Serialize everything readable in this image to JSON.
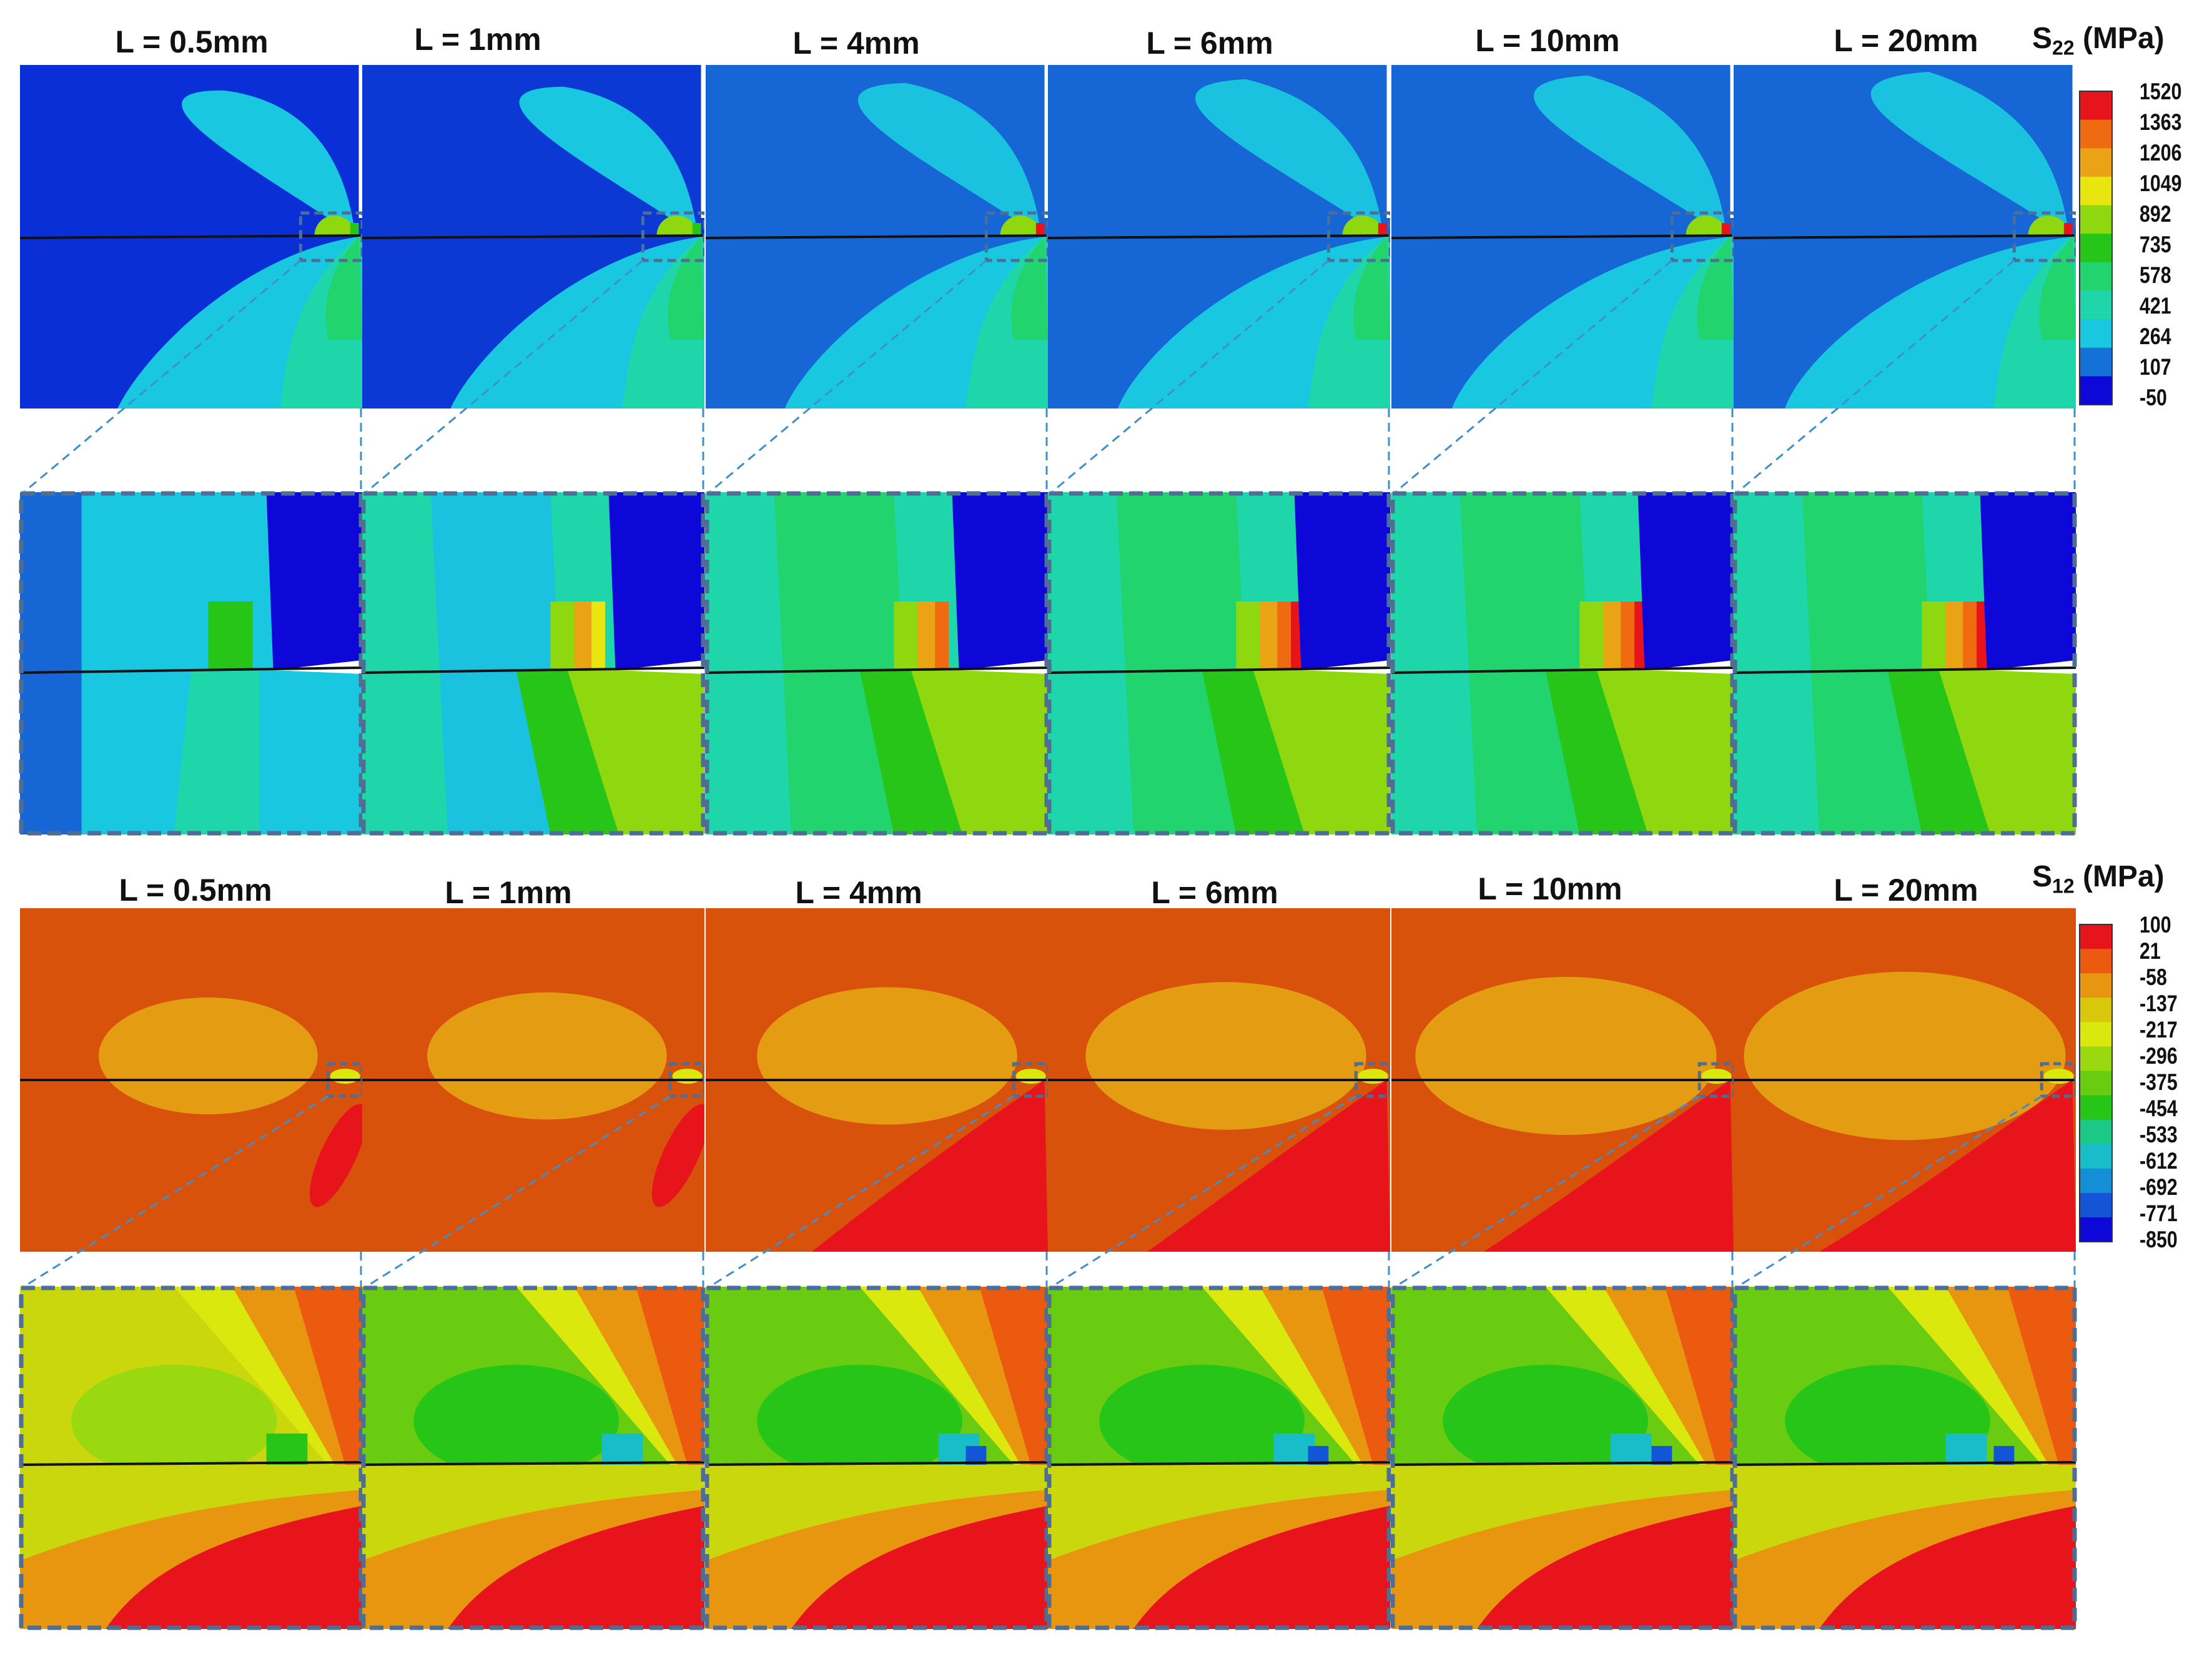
{
  "top_figure": {
    "labels": [
      "L = 0.5mm",
      "L = 1mm",
      "L = 4mm",
      "L = 6mm",
      "L = 10mm",
      "L = 20mm"
    ],
    "colorbar": {
      "symbol": "S",
      "subscript": "22",
      "unit": "(MPa)",
      "ticks": [
        "1520",
        "1363",
        "1206",
        "1049",
        "892",
        "735",
        "578",
        "421",
        "264",
        "107",
        "-50"
      ]
    }
  },
  "bottom_figure": {
    "labels": [
      "L = 0.5mm",
      "L = 1mm",
      "L = 4mm",
      "L = 6mm",
      "L = 10mm",
      "L = 20mm"
    ],
    "colorbar": {
      "symbol": "S",
      "subscript": "12",
      "unit": "(MPa)",
      "ticks": [
        "100",
        "21",
        "-58",
        "-137",
        "-217",
        "-296",
        "-375",
        "-454",
        "-533",
        "-612",
        "-692",
        "-771",
        "-850"
      ]
    }
  },
  "colors": {
    "s22_scale": [
      "#e8141b",
      "#ef6a10",
      "#eaa314",
      "#e9e60f",
      "#8fd80f",
      "#27c517",
      "#21d46e",
      "#1ed6aa",
      "#19c7e0",
      "#1371d8",
      "#0d08d8"
    ],
    "s12_scale": [
      "#e8141b",
      "#ec5a0f",
      "#e8960f",
      "#d9c70c",
      "#dbe80e",
      "#9ad80f",
      "#6acc10",
      "#27c517",
      "#1cc885",
      "#18bdc9",
      "#148ed6",
      "#1355d6",
      "#0d08d8"
    ],
    "zoom_line": "#3f8fd0",
    "zoom_frame": "#4e6e94"
  }
}
